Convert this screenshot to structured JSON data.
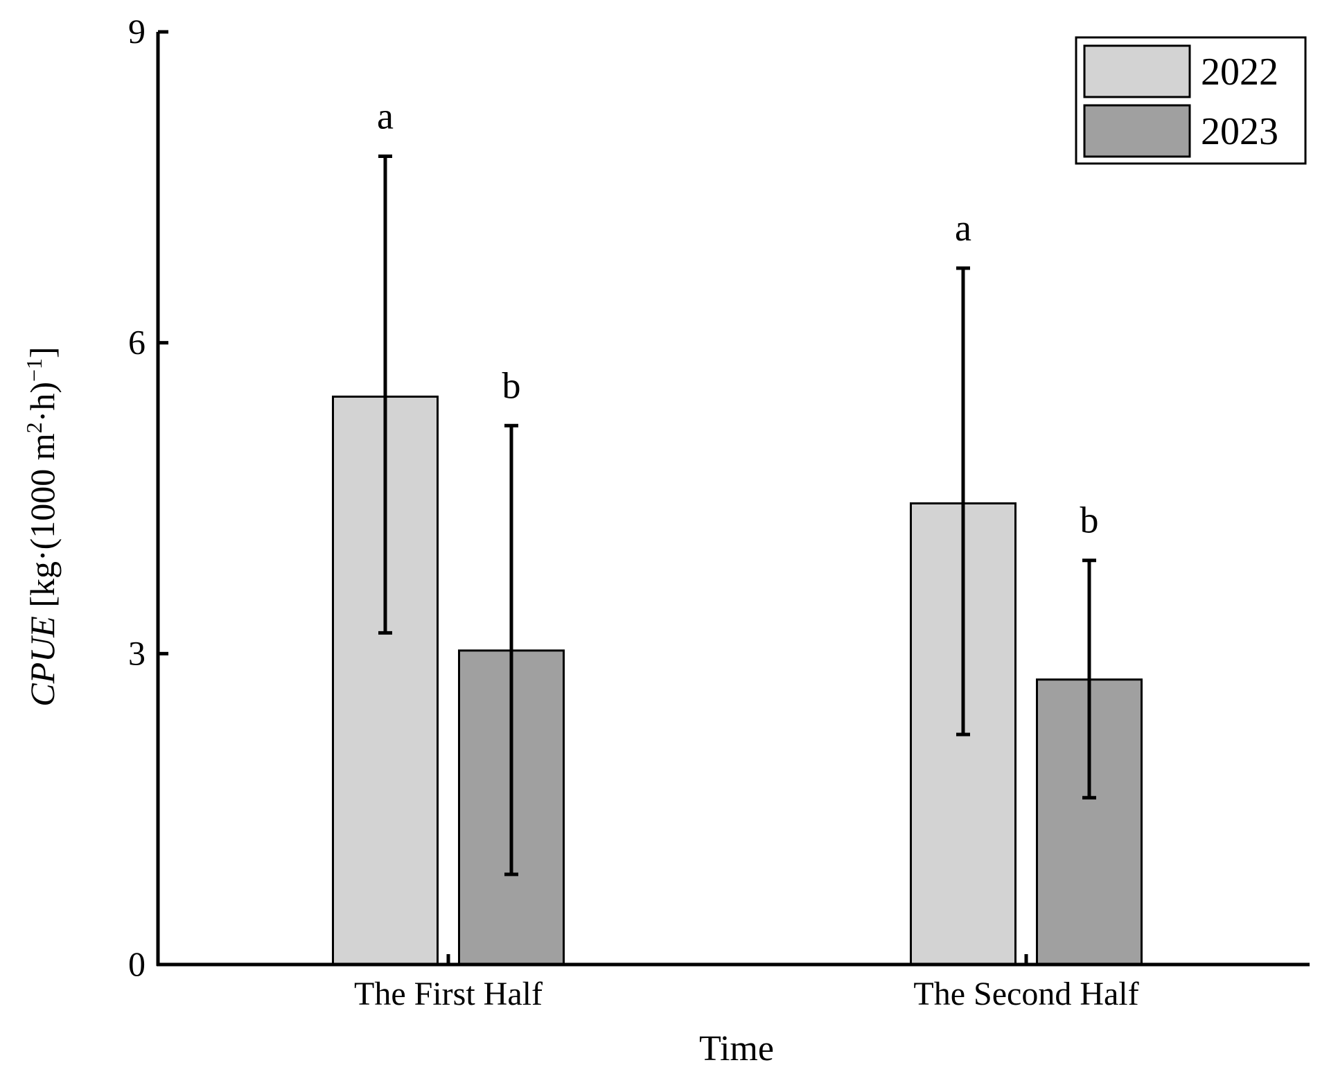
{
  "chart_data": {
    "type": "bar",
    "xlabel": "Time",
    "ylabel": {
      "italic": "CPUE",
      "before_sup": " [kg·(1000 m",
      "sup1": "2",
      "middle": "·h)",
      "sup2": "−1",
      "after": "]"
    },
    "categories": [
      "The First Half",
      "The Second Half"
    ],
    "ylim": [
      0,
      9
    ],
    "yticks": [
      0,
      3,
      6,
      9
    ],
    "grid": false,
    "legend_position": "top-right",
    "series": [
      {
        "name": "2022",
        "color": "#d3d3d3",
        "values": [
          5.48,
          4.45
        ],
        "error_low": [
          3.2,
          2.22
        ],
        "error_high": [
          7.8,
          6.72
        ],
        "labels": [
          "a",
          "a"
        ]
      },
      {
        "name": "2023",
        "color": "#a0a0a0",
        "values": [
          3.03,
          2.75
        ],
        "error_low": [
          0.87,
          1.61
        ],
        "error_high": [
          5.2,
          3.9
        ],
        "labels": [
          "b",
          "b"
        ]
      }
    ]
  }
}
